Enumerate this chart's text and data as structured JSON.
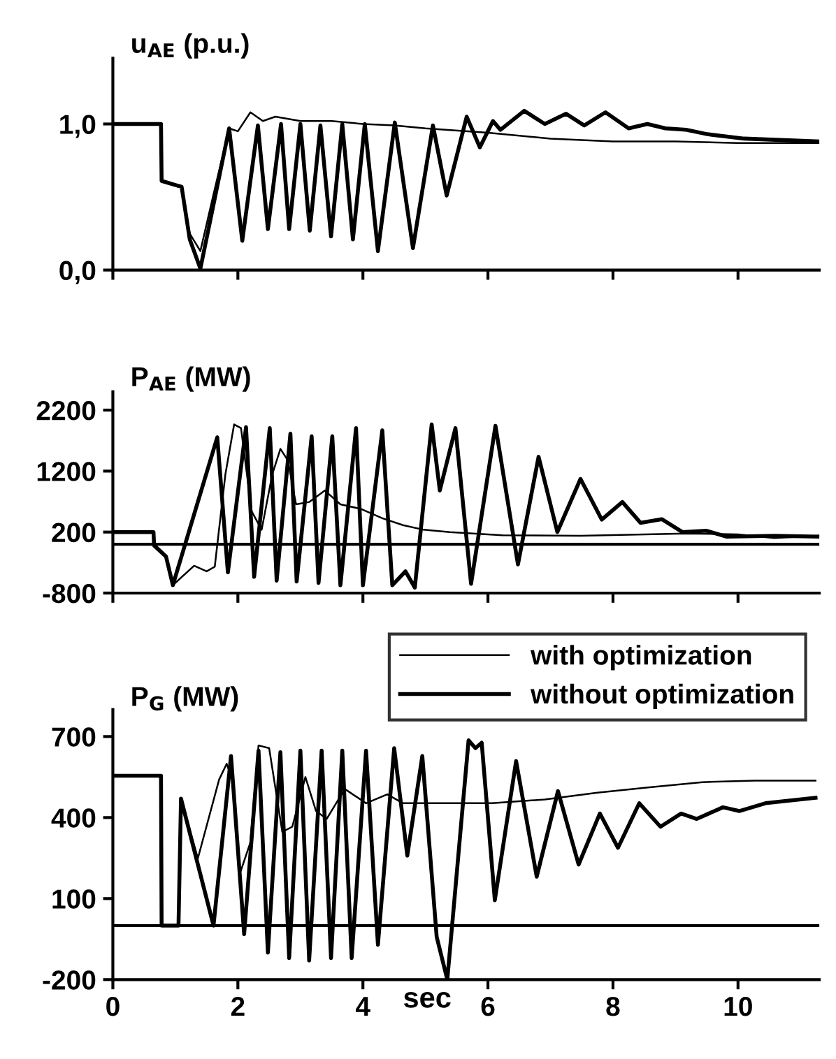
{
  "chart_data": [
    {
      "type": "line",
      "title": "u$_{AE}$ (p.u.)",
      "xlim": [
        0,
        11.3
      ],
      "xticks": [
        0,
        2,
        4,
        6,
        8,
        10
      ],
      "ylim": [
        0,
        1.45
      ],
      "yticks": [
        {
          "value": 0,
          "label": "0,0"
        },
        {
          "value": 1,
          "label": "1,0"
        }
      ],
      "tick_labels": "y",
      "grid": false,
      "legend": false,
      "series": [
        {
          "color": "#000000",
          "x": [
            0,
            0.77,
            0.78,
            1.1,
            1.23,
            1.4,
            1.6,
            1.86,
            2.0,
            2.2,
            2.4,
            2.6,
            3.0,
            3.5,
            4.0,
            4.5,
            5.0,
            6.0,
            7.0,
            8.0,
            9.0,
            10.0,
            11.3
          ],
          "values": [
            1.0,
            1.0,
            0.61,
            0.57,
            0.25,
            0.13,
            0.5,
            0.97,
            0.95,
            1.08,
            1.02,
            1.05,
            1.02,
            1.02,
            1.0,
            0.99,
            0.97,
            0.94,
            0.9,
            0.88,
            0.88,
            0.87,
            0.87
          ]
        },
        {
          "color": "#000000",
          "x": [
            0,
            0.77,
            0.78,
            1.1,
            1.23,
            1.4,
            1.86,
            2.07,
            2.32,
            2.48,
            2.69,
            2.82,
            3.0,
            3.15,
            3.32,
            3.49,
            3.67,
            3.84,
            4.03,
            4.24,
            4.51,
            4.8,
            5.12,
            5.34,
            5.66,
            5.87,
            6.08,
            6.2,
            6.58,
            6.91,
            7.25,
            7.54,
            7.88,
            8.25,
            8.55,
            8.84,
            9.17,
            9.51,
            10.1,
            11.3
          ],
          "values": [
            1.0,
            1.0,
            0.61,
            0.57,
            0.21,
            0.01,
            0.97,
            0.2,
            0.99,
            0.28,
            1.0,
            0.28,
            1.0,
            0.27,
            0.99,
            0.23,
            1.0,
            0.21,
            1.0,
            0.13,
            1.01,
            0.15,
            0.99,
            0.51,
            1.05,
            0.84,
            1.02,
            0.96,
            1.09,
            1.0,
            1.07,
            0.99,
            1.08,
            0.97,
            1.0,
            0.97,
            0.96,
            0.93,
            0.9,
            0.88
          ]
        }
      ]
    },
    {
      "type": "line",
      "title": "P$_{AE}$ (MW)",
      "xlim": [
        0,
        11.3
      ],
      "xticks": [
        0,
        2,
        4,
        6,
        8,
        10
      ],
      "ylim": [
        -800,
        2500
      ],
      "yticks": [
        -800,
        200,
        1200,
        2200
      ],
      "tick_labels": "y",
      "grid": false,
      "legend": false,
      "ref_lines": [
        {
          "axis": "y",
          "value": 0,
          "label": null,
          "color": "#000000"
        }
      ],
      "series": [
        {
          "color": "#000000",
          "x": [
            0,
            0.65,
            0.66,
            0.85,
            0.96,
            1.3,
            1.5,
            1.63,
            1.8,
            1.94,
            2.05,
            2.22,
            2.38,
            2.55,
            2.68,
            2.8,
            2.93,
            3.14,
            3.39,
            3.64,
            3.97,
            4.31,
            4.64,
            4.97,
            5.39,
            6.23,
            7.48,
            9.16,
            10.0,
            10.58,
            11.3
          ],
          "values": [
            200,
            200,
            -20,
            -200,
            -670,
            -353,
            -444,
            -368,
            1147,
            1966,
            1905,
            541,
            238,
            1147,
            1564,
            1375,
            655,
            693,
            882,
            655,
            579,
            427,
            314,
            238,
            200,
            147,
            140,
            177,
            162,
            101,
            140
          ]
        },
        {
          "color": "#000000",
          "x": [
            0,
            0.65,
            0.66,
            0.85,
            0.96,
            1.67,
            1.84,
            2.13,
            2.26,
            2.51,
            2.62,
            2.84,
            2.94,
            3.18,
            3.29,
            3.51,
            3.64,
            3.89,
            4.0,
            4.31,
            4.47,
            4.68,
            4.83,
            5.1,
            5.23,
            5.48,
            5.73,
            6.12,
            6.48,
            6.81,
            7.11,
            7.48,
            7.82,
            8.15,
            8.44,
            8.78,
            9.11,
            9.49,
            9.82,
            10.58,
            11.3
          ],
          "values": [
            200,
            200,
            -20,
            -200,
            -670,
            1754,
            -460,
            1920,
            -535,
            1905,
            -596,
            1815,
            -611,
            1770,
            -634,
            1770,
            -672,
            1905,
            -672,
            1868,
            -672,
            -444,
            -710,
            1966,
            882,
            1905,
            -649,
            1943,
            -330,
            1435,
            200,
            1072,
            405,
            693,
            352,
            412,
            200,
            223,
            124,
            140,
            124
          ]
        }
      ]
    },
    {
      "type": "line",
      "title": "P$_{G}$ (MW)",
      "xlabel": "sec",
      "xlim": [
        0,
        11.3
      ],
      "xticks": [
        0,
        2,
        4,
        6,
        8,
        10
      ],
      "ylim": [
        -200,
        800
      ],
      "yticks": [
        -200,
        100,
        400,
        700
      ],
      "grid": false,
      "legend": "top right",
      "ref_lines": [
        {
          "axis": "y",
          "value": 0,
          "label": null,
          "color": "#000000"
        }
      ],
      "series": [
        {
          "name": "with optimization",
          "color": "#000000",
          "x": [
            0,
            0.77,
            0.78,
            1.05,
            1.09,
            1.36,
            1.7,
            1.82,
            1.91,
            2.03,
            2.2,
            2.33,
            2.5,
            2.71,
            2.87,
            3.08,
            3.25,
            3.42,
            3.71,
            4.05,
            4.39,
            4.64,
            5.23,
            6.07,
            6.91,
            7.75,
            8.59,
            9.43,
            10.27,
            11.24
          ],
          "values": [
            555,
            555,
            0,
            0,
            470,
            249,
            541,
            599,
            541,
            191,
            308,
            667,
            657,
            347,
            366,
            550,
            424,
            395,
            506,
            453,
            486,
            453,
            453,
            453,
            467,
            492,
            512,
            531,
            537,
            537
          ]
        },
        {
          "name": "without optimization",
          "color": "#000000",
          "x": [
            0,
            0.77,
            0.78,
            1.05,
            1.09,
            1.61,
            1.89,
            2.1,
            2.33,
            2.48,
            2.68,
            2.82,
            3.0,
            3.14,
            3.34,
            3.49,
            3.67,
            3.82,
            4.05,
            4.24,
            4.5,
            4.71,
            4.95,
            5.18,
            5.35,
            5.69,
            5.8,
            5.9,
            6.11,
            6.45,
            6.78,
            7.12,
            7.45,
            7.79,
            8.08,
            8.42,
            8.76,
            9.09,
            9.34,
            9.76,
            10.02,
            10.44,
            11.24
          ],
          "values": [
            555,
            555,
            0,
            0,
            470,
            0,
            628,
            -32,
            648,
            -100,
            642,
            -120,
            648,
            -129,
            648,
            -120,
            648,
            -120,
            648,
            -71,
            657,
            259,
            628,
            -42,
            -200,
            686,
            657,
            677,
            94,
            609,
            181,
            498,
            226,
            415,
            288,
            453,
            366,
            415,
            395,
            438,
            424,
            453,
            473
          ]
        }
      ]
    }
  ]
}
